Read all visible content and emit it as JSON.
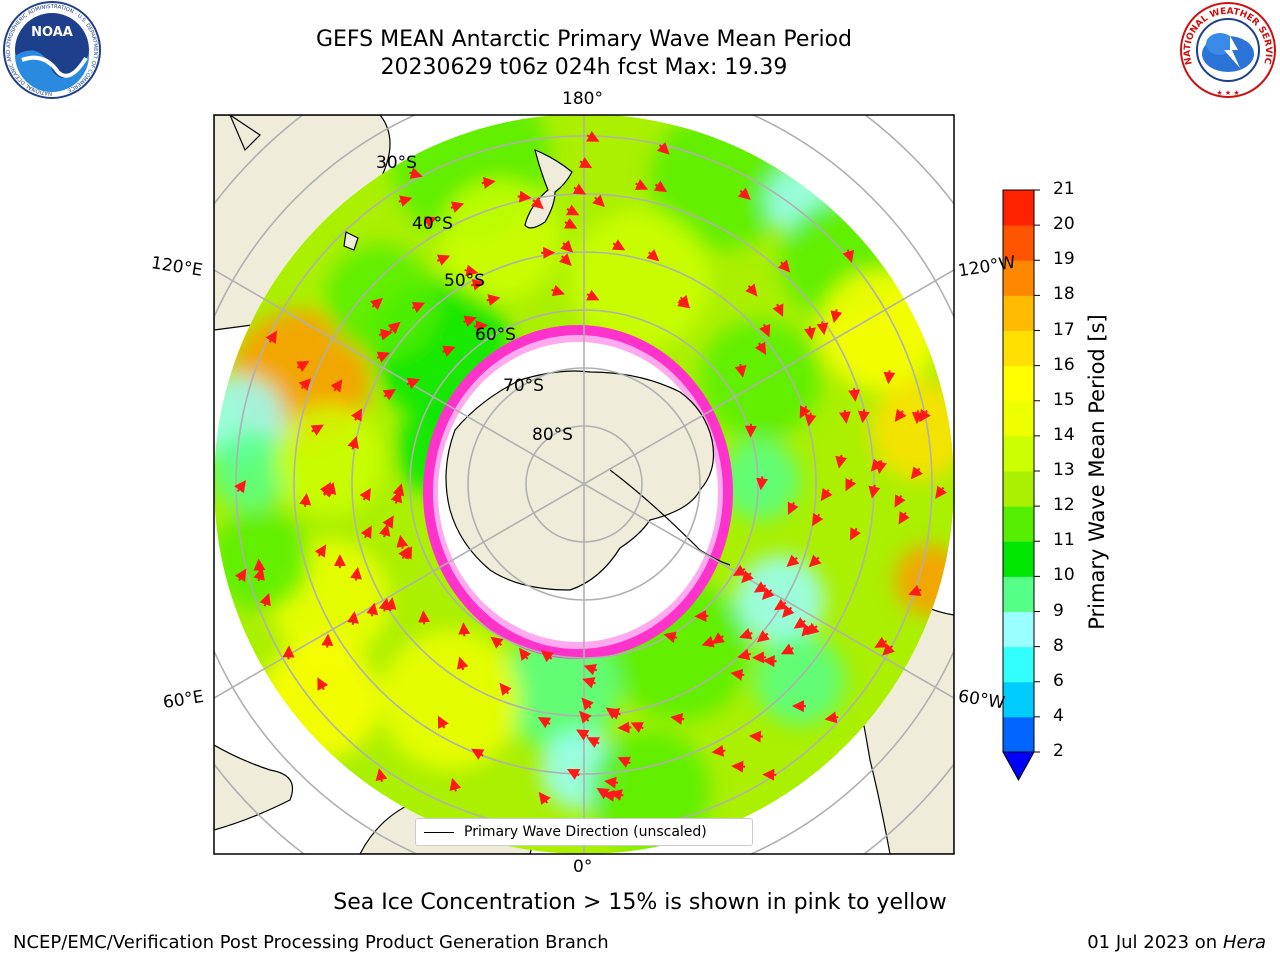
{
  "title": {
    "line1": "GEFS MEAN Antarctic Primary Wave Mean Period",
    "line2": "20230629 t06z 024h fcst   Max: 19.39"
  },
  "map": {
    "projection": "south-polar-stereographic",
    "lon_labels": {
      "top": "180°",
      "bottom": "0°",
      "left_upper": "120°E",
      "left_lower": "60°E",
      "right_upper": "120°W",
      "right_lower": "60°W"
    },
    "lat_labels": [
      "30°S",
      "40°S",
      "50°S",
      "60°S",
      "70°S",
      "80°S"
    ],
    "legend": "Primary Wave Direction (unscaled)",
    "colors": {
      "land": "#efedda",
      "ice_interior": "#ffffff",
      "ice_edge": "#ff33cc",
      "arrow": "#ff1a1a"
    }
  },
  "colorbar": {
    "label": "Primary Wave Mean Period [s]",
    "ticks": [
      "2",
      "4",
      "6",
      "8",
      "9",
      "10",
      "11",
      "12",
      "13",
      "14",
      "15",
      "16",
      "17",
      "18",
      "19",
      "20",
      "21"
    ],
    "colors": [
      "#0066ff",
      "#00ccff",
      "#33ffff",
      "#99ffff",
      "#55ff88",
      "#00e600",
      "#55ee00",
      "#aaf000",
      "#ccff00",
      "#eeff00",
      "#ffff00",
      "#ffe000",
      "#ffbb00",
      "#ff8800",
      "#ff5500",
      "#ff2200"
    ],
    "under_color": "#0000ff"
  },
  "caption": "Sea Ice Concentration > 15% is shown in pink to yellow",
  "footer": {
    "left": "NCEP/EMC/Verification Post Processing Product Generation Branch",
    "right_date": "01 Jul 2023 on ",
    "right_machine": "Hera"
  },
  "logos": {
    "left": "NOAA",
    "left_ring": "NATIONAL OCEANIC AND ATMOSPHERIC ADMINISTRATION · U.S. DEPARTMENT OF COMMERCE",
    "right_ring": "NATIONAL WEATHER SERVICE"
  }
}
